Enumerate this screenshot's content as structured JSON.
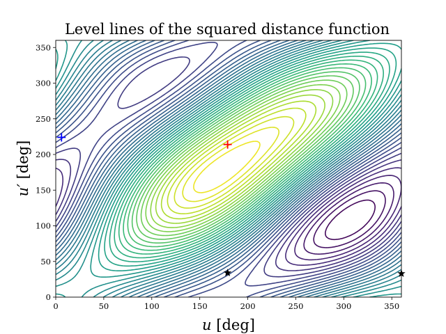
{
  "chart_data": {
    "type": "contour",
    "title": "Level lines of the squared distance function",
    "xlabel": "u [deg]",
    "xlabel_var": "u",
    "xlabel_unit": " [deg]",
    "ylabel": "u′ [deg]",
    "ylabel_var": "u′",
    "ylabel_unit": " [deg]",
    "xlim": [
      0,
      360
    ],
    "ylim": [
      0,
      360
    ],
    "xticks": [
      0,
      50,
      100,
      150,
      200,
      250,
      300,
      350
    ],
    "yticks": [
      0,
      50,
      100,
      150,
      200,
      250,
      300,
      350
    ],
    "colormap": "viridis",
    "contour_levels": 40,
    "markers": [
      {
        "type": "plus",
        "color": "#0000ff",
        "x": 6,
        "y": 224
      },
      {
        "type": "plus",
        "color": "#ff0000",
        "x": 179,
        "y": 214
      },
      {
        "type": "star",
        "color": "#000000",
        "x": 179,
        "y": 34
      },
      {
        "type": "star",
        "color": "#000000",
        "x": 360,
        "y": 33
      }
    ],
    "grid": false
  }
}
